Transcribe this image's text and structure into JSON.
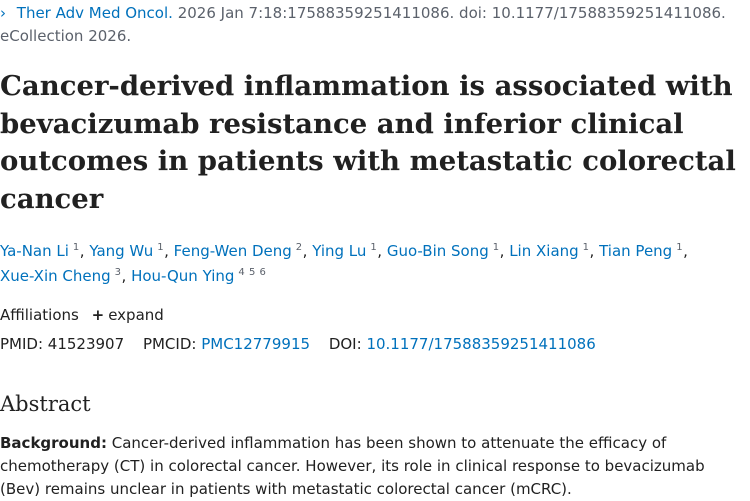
{
  "citation": {
    "journal": "Ther Adv Med Oncol.",
    "details": "2026 Jan 7:18:17588359251411086. doi: 10.1177/17588359251411086.",
    "ecollection": "eCollection 2026."
  },
  "title": "Cancer-derived inflammation is associated with bevacizumab resistance and inferior clinical outcomes in patients with metastatic colorectal cancer",
  "authors": [
    {
      "name": "Ya-Nan Li",
      "aff": "1"
    },
    {
      "name": "Yang Wu",
      "aff": "1"
    },
    {
      "name": "Feng-Wen Deng",
      "aff": "2"
    },
    {
      "name": "Ying Lu",
      "aff": "1"
    },
    {
      "name": "Guo-Bin Song",
      "aff": "1"
    },
    {
      "name": "Lin Xiang",
      "aff": "1"
    },
    {
      "name": "Tian Peng",
      "aff": "1"
    },
    {
      "name": "Xue-Xin Cheng",
      "aff": "3"
    },
    {
      "name": "Hou-Qun Ying",
      "aff": "4 5 6"
    }
  ],
  "affiliations": {
    "label": "Affiliations",
    "expand_label": "expand"
  },
  "identifiers": {
    "pmid_label": "PMID:",
    "pmid": "41523907",
    "pmcid_label": "PMCID:",
    "pmcid": "PMC12779915",
    "doi_label": "DOI:",
    "doi": "10.1177/17588359251411086"
  },
  "abstract": {
    "heading": "Abstract",
    "background_label": "Background:",
    "background_text": "Cancer-derived inflammation has been shown to attenuate the efficacy of chemotherapy (CT) in colorectal cancer. However, its role in clinical response to bevacizumab (Bev) remains unclear in patients with metastatic colorectal cancer (mCRC)."
  }
}
